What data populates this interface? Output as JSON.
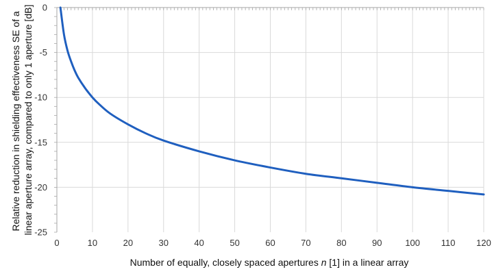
{
  "chart_data": {
    "type": "line",
    "title": "",
    "xlabel_parts": [
      "Number of equally, closely spaced apertures ",
      "n",
      " [1] in a linear array"
    ],
    "ylabel_lines": [
      "Relative reduction in shielding effectiveness SE of a",
      "linear aperture array, compared to only 1 aperture [dB]"
    ],
    "xlim": [
      0,
      120
    ],
    "ylim": [
      -25,
      0
    ],
    "x_ticks": [
      0,
      10,
      20,
      30,
      40,
      50,
      60,
      70,
      80,
      90,
      100,
      110,
      120
    ],
    "y_ticks": [
      0,
      -5,
      -10,
      -15,
      -20,
      -25
    ],
    "grid": true,
    "legend": "none",
    "series": [
      {
        "color": "#1f5fbf",
        "x": [
          1,
          2,
          3,
          4,
          5,
          6,
          8,
          10,
          12,
          15,
          20,
          25,
          30,
          40,
          50,
          60,
          70,
          80,
          90,
          100,
          110,
          120
        ],
        "y": [
          0,
          -3.0,
          -4.8,
          -6.0,
          -7.0,
          -7.8,
          -9.0,
          -10.0,
          -10.8,
          -11.8,
          -13.0,
          -14.0,
          -14.8,
          -16.0,
          -17.0,
          -17.8,
          -18.5,
          -19.0,
          -19.5,
          -20.0,
          -20.4,
          -20.8
        ]
      }
    ]
  }
}
